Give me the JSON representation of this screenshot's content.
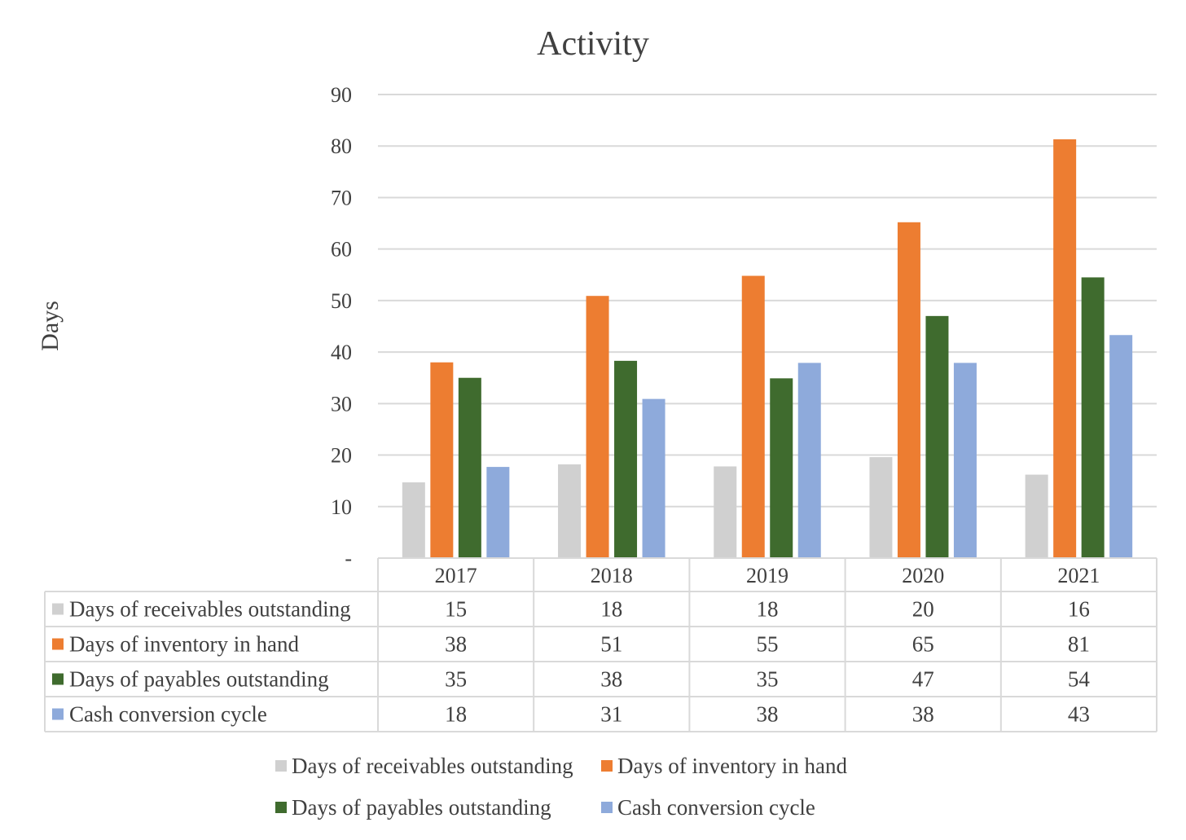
{
  "chart_data": {
    "type": "bar",
    "title": "Activity",
    "ylabel": "Days",
    "xlabel": "",
    "ylim": [
      0,
      90
    ],
    "y_ticks": [
      "-",
      "10",
      "20",
      "30",
      "40",
      "50",
      "60",
      "70",
      "80",
      "90"
    ],
    "grid": true,
    "legend_placement": "bottom",
    "data_table": true,
    "categories": [
      "2017",
      "2018",
      "2019",
      "2020",
      "2021"
    ],
    "series": [
      {
        "name": "Days of receivables outstanding",
        "color": "#d0d0d0",
        "values": [
          14.7,
          18.2,
          17.8,
          19.6,
          16.2
        ],
        "table_values": [
          "15",
          "18",
          "18",
          "20",
          "16"
        ]
      },
      {
        "name": "Days of inventory in hand",
        "color": "#ed7d31",
        "values": [
          38.0,
          50.9,
          54.8,
          65.2,
          81.3
        ],
        "table_values": [
          "38",
          "51",
          "55",
          "65",
          "81"
        ]
      },
      {
        "name": "Days of payables outstanding",
        "color": "#3f6b2e",
        "values": [
          35.0,
          38.3,
          34.9,
          47.0,
          54.5
        ],
        "table_values": [
          "35",
          "38",
          "35",
          "47",
          "54"
        ]
      },
      {
        "name": "Cash conversion cycle",
        "color": "#8eaadb",
        "values": [
          17.7,
          30.9,
          37.9,
          37.9,
          43.3
        ],
        "table_values": [
          "18",
          "31",
          "38",
          "38",
          "43"
        ]
      }
    ]
  }
}
